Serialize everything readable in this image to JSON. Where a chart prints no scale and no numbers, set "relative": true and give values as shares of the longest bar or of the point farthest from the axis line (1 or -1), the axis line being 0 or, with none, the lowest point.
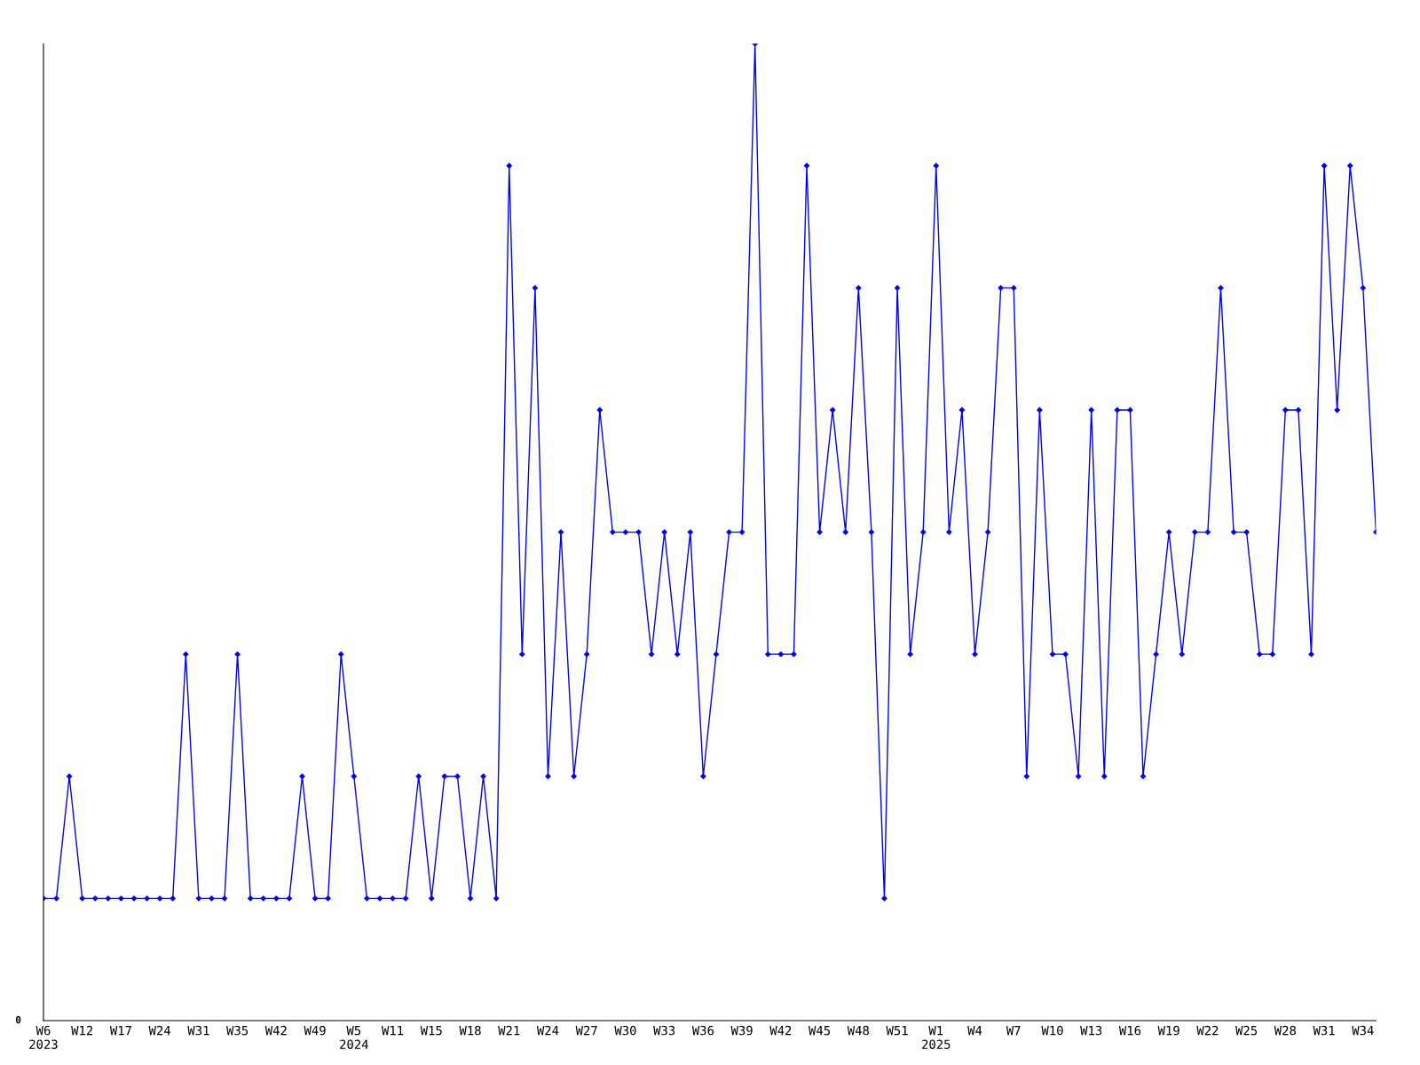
{
  "chart_data": {
    "type": "line",
    "relative": true,
    "categories": [
      "W6\n2023",
      null,
      null,
      "W12",
      null,
      null,
      "W17",
      null,
      null,
      "W24",
      null,
      null,
      "W31",
      null,
      null,
      "W35",
      null,
      null,
      "W42",
      null,
      null,
      "W49",
      null,
      null,
      "W5\n2024",
      null,
      null,
      "W11",
      null,
      null,
      "W15",
      null,
      null,
      "W18",
      null,
      null,
      "W21",
      null,
      null,
      "W24",
      null,
      null,
      "W27",
      null,
      null,
      "W30",
      null,
      null,
      "W33",
      null,
      null,
      "W36",
      null,
      null,
      "W39",
      null,
      null,
      "W42",
      null,
      null,
      "W45",
      null,
      null,
      "W48",
      null,
      null,
      "W51",
      null,
      null,
      "W1\n2025",
      null,
      null,
      "W4",
      null,
      null,
      "W7",
      null,
      null,
      "W10",
      null,
      null,
      "W13",
      null,
      null,
      "W16",
      null,
      null,
      "W19",
      null,
      null,
      "W22",
      null,
      null,
      "W25",
      null,
      null,
      "W28",
      null,
      null,
      "W31",
      null,
      null,
      "W34",
      null
    ],
    "series": [
      {
        "color": "#0000ff",
        "values": [
          0.125,
          0.125,
          0.25,
          0.125,
          0.125,
          0.125,
          0.125,
          0.125,
          0.125,
          0.125,
          0.125,
          0.375,
          0.125,
          0.125,
          0.125,
          0.375,
          0.125,
          0.125,
          0.125,
          0.125,
          0.25,
          0.125,
          0.125,
          0.375,
          0.25,
          0.125,
          0.125,
          0.125,
          0.125,
          0.25,
          0.125,
          0.25,
          0.25,
          0.125,
          0.25,
          0.125,
          0.875,
          0.375,
          0.75,
          0.25,
          0.5,
          0.25,
          0.375,
          0.625,
          0.5,
          0.5,
          0.5,
          0.375,
          0.5,
          0.375,
          0.5,
          0.25,
          0.375,
          0.5,
          0.5,
          1,
          0.375,
          0.375,
          0.375,
          0.875,
          0.5,
          0.625,
          0.5,
          0.75,
          0.5,
          0.125,
          0.75,
          0.375,
          0.5,
          0.875,
          0.5,
          0.625,
          0.375,
          0.5,
          0.75,
          0.75,
          0.25,
          0.625,
          0.375,
          0.375,
          0.25,
          0.625,
          0.25,
          0.625,
          0.625,
          0.25,
          0.375,
          0.5,
          0.375,
          0.5,
          0.5,
          0.75,
          0.5,
          0.5,
          0.375,
          0.375,
          0.625,
          0.625,
          0.375,
          0.875,
          0.625,
          0.875,
          0.75,
          0.5
        ]
      }
    ],
    "marker": "diamond",
    "line_style": "solid",
    "grid": false,
    "legend": false,
    "annotations": [
      "0"
    ]
  }
}
